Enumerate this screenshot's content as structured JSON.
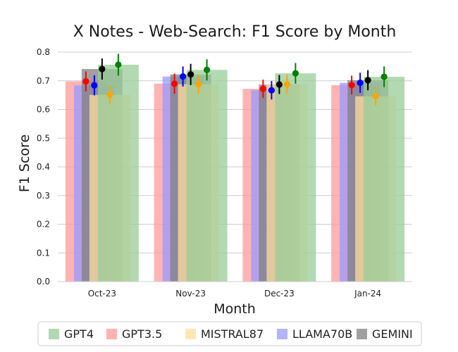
{
  "chart_data": {
    "type": "bar",
    "title": "X Notes - Web-Search: F1 Score by Month",
    "xlabel": "Month",
    "ylabel": "F1 Score",
    "ylim": [
      0,
      0.8
    ],
    "yticks": [
      "0.0",
      "0.1",
      "0.2",
      "0.3",
      "0.4",
      "0.5",
      "0.6",
      "0.7",
      "0.8"
    ],
    "grid": true,
    "legend_position": "bottom",
    "categories": [
      "Oct-23",
      "Nov-23",
      "Dec-23",
      "Jan-24"
    ],
    "bars": [
      {
        "name": "GPT3.5",
        "color": "#ff9999",
        "values": [
          0.698,
          0.69,
          0.672,
          0.685
        ]
      },
      {
        "name": "LLAMA70B",
        "color": "#9999ff",
        "values": [
          0.684,
          0.715,
          0.667,
          0.693
        ]
      },
      {
        "name": "GEMINI",
        "color": "#808080",
        "values": [
          0.741,
          0.722,
          0.687,
          0.702
        ]
      },
      {
        "name": "MISTRAL87",
        "color": "#ffdd99",
        "values": [
          0.651,
          0.688,
          0.688,
          0.646
        ]
      },
      {
        "name": "GPT4",
        "color": "#99cc99",
        "values": [
          0.756,
          0.738,
          0.726,
          0.714
        ]
      }
    ],
    "points": [
      {
        "color": "#ff0000",
        "values": [
          0.698,
          0.69,
          0.672,
          0.685
        ],
        "err": [
          0.035,
          0.035,
          0.032,
          0.033
        ]
      },
      {
        "color": "#0000ff",
        "values": [
          0.684,
          0.715,
          0.667,
          0.693
        ],
        "err": [
          0.035,
          0.035,
          0.032,
          0.035
        ]
      },
      {
        "color": "#000000",
        "values": [
          0.741,
          0.722,
          0.687,
          0.702
        ],
        "err": [
          0.037,
          0.037,
          0.033,
          0.035
        ]
      },
      {
        "color": "#ffa500",
        "values": [
          0.651,
          0.688,
          0.688,
          0.646
        ],
        "err": [
          0.033,
          0.034,
          0.034,
          0.033
        ]
      },
      {
        "color": "#008000",
        "values": [
          0.756,
          0.738,
          0.726,
          0.714
        ],
        "err": [
          0.038,
          0.037,
          0.036,
          0.036
        ]
      }
    ],
    "legend": [
      {
        "name": "GPT4",
        "color": "#99cc99"
      },
      {
        "name": "GPT3.5",
        "color": "#ff9999"
      },
      {
        "name": "MISTRAL87",
        "color": "#ffdd99"
      },
      {
        "name": "LLAMA70B",
        "color": "#9999ff"
      },
      {
        "name": "GEMINI",
        "color": "#808080"
      }
    ]
  }
}
